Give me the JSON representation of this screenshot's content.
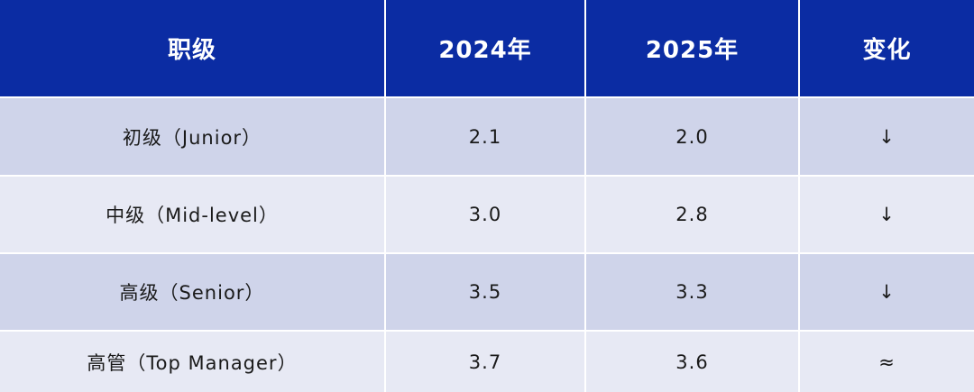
{
  "table": {
    "columns": [
      "职级",
      "2024年",
      "2025年",
      "变化"
    ],
    "rows": [
      [
        "初级（Junior）",
        "2.1",
        "2.0",
        "↓"
      ],
      [
        "中级（Mid-level）",
        "3.0",
        "2.8",
        "↓"
      ],
      [
        "高级（Senior）",
        "3.5",
        "3.3",
        "↓"
      ],
      [
        "高管（Top Manager）",
        "3.7",
        "3.6",
        "≈"
      ]
    ]
  }
}
